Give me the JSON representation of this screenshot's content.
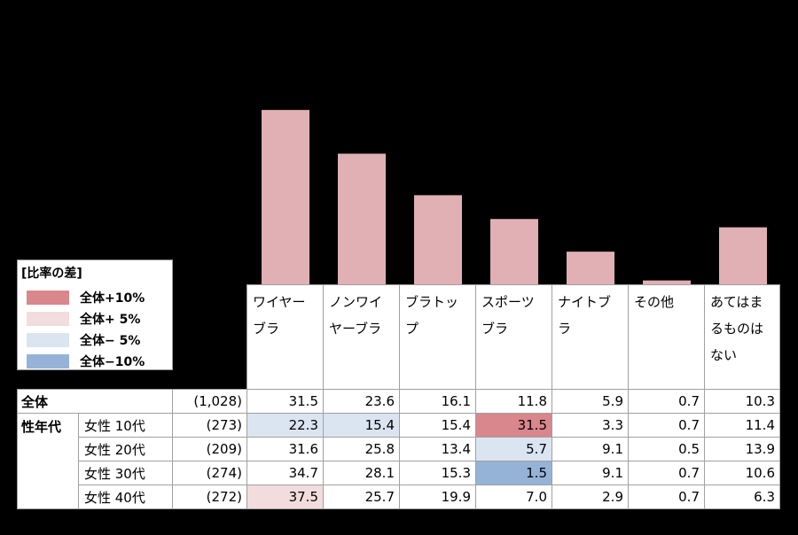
{
  "colors": {
    "bar": "#e0b0b4",
    "plus10": "#d9868c",
    "plus5": "#f2dcdd",
    "minus5": "#dbe5f1",
    "minus10": "#95b3d7"
  },
  "legend": {
    "title": "[比率の差]",
    "items": [
      {
        "label": "全体+10%",
        "color": "#d9868c"
      },
      {
        "label": "全体+ 5%",
        "color": "#f2dcdd"
      },
      {
        "label": "全体− 5%",
        "color": "#dbe5f1"
      },
      {
        "label": "全体−10%",
        "color": "#95b3d7"
      }
    ]
  },
  "chart_data": {
    "type": "bar",
    "categories": [
      "ワイヤーブラ",
      "ノンワイヤーブラ",
      "ブラトップ",
      "スポーツブラ",
      "ナイトブラ",
      "その他",
      "あてはまるものはない"
    ],
    "values": [
      31.5,
      23.6,
      16.1,
      11.8,
      5.9,
      0.7,
      10.3
    ],
    "ylim": [
      0,
      40
    ]
  },
  "table": {
    "headers": [
      [
        "ワイヤー",
        "ブラ"
      ],
      [
        "ノンワイ",
        "ヤーブラ"
      ],
      [
        "ブラトッ",
        "プ"
      ],
      [
        "スポーツ",
        "ブラ"
      ],
      [
        "ナイトブ",
        "ラ"
      ],
      [
        "その他"
      ],
      [
        "あてはま",
        "るものは",
        "ない"
      ]
    ],
    "total": {
      "label": "全体",
      "n": "(1,028)",
      "values": [
        "31.5",
        "23.6",
        "16.1",
        "11.8",
        "5.9",
        "0.7",
        "10.3"
      ]
    },
    "group_label": "性年代",
    "rows": [
      {
        "label": "女性 10代",
        "n": "(273)",
        "values": [
          "22.3",
          "15.4",
          "15.4",
          "31.5",
          "3.3",
          "0.7",
          "11.4"
        ],
        "shades": [
          "minus5",
          "minus5",
          "",
          "plus10",
          "",
          "",
          ""
        ]
      },
      {
        "label": "女性 20代",
        "n": "(209)",
        "values": [
          "31.6",
          "25.8",
          "13.4",
          "5.7",
          "9.1",
          "0.5",
          "13.9"
        ],
        "shades": [
          "",
          "",
          "",
          "minus5",
          "",
          "",
          ""
        ]
      },
      {
        "label": "女性 30代",
        "n": "(274)",
        "values": [
          "34.7",
          "28.1",
          "15.3",
          "1.5",
          "9.1",
          "0.7",
          "10.6"
        ],
        "shades": [
          "",
          "",
          "",
          "minus10",
          "",
          "",
          ""
        ]
      },
      {
        "label": "女性 40代",
        "n": "(272)",
        "values": [
          "37.5",
          "25.7",
          "19.9",
          "7.0",
          "2.9",
          "0.7",
          "6.3"
        ],
        "shades": [
          "plus5",
          "",
          "",
          "",
          "",
          "",
          ""
        ]
      }
    ]
  }
}
